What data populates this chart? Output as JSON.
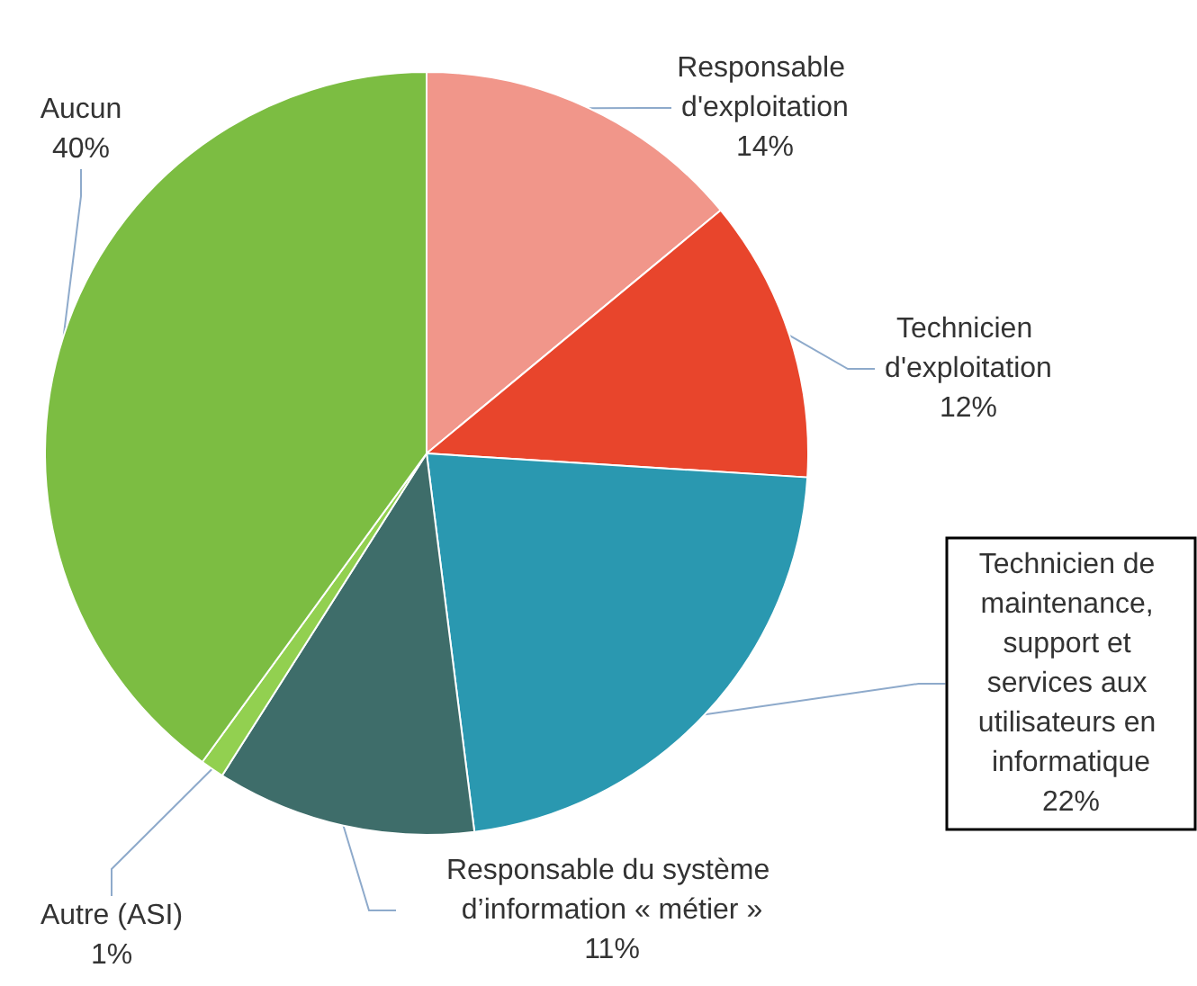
{
  "chart_data": {
    "type": "pie",
    "categories": [
      "Responsable d'exploitation",
      "Technicien d'exploitation",
      "Technicien de maintenance, support et services aux utilisateurs en informatique",
      "Responsable du système d’information « métier »",
      "Autre (ASI)",
      "Aucun"
    ],
    "values": [
      14,
      12,
      22,
      11,
      1,
      40
    ],
    "value_labels": [
      "14%",
      "12%",
      "22%",
      "11%",
      "1%",
      "40%"
    ],
    "colors": [
      "#f1968a",
      "#e8452c",
      "#2a98b0",
      "#3e6d6a",
      "#92d050",
      "#7cbd42"
    ],
    "legend": false
  }
}
